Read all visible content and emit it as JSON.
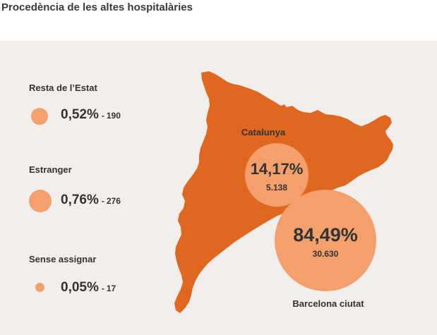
{
  "title": "Procedència de les altes hospitalàries",
  "colors": {
    "region": "#e0671f",
    "bubble": "#f3a06c",
    "panel": "#f1eeec"
  },
  "legend": [
    {
      "heading": "Resta de l’Estat",
      "percent": "0,52%",
      "separator": "-",
      "count": "190"
    },
    {
      "heading": "Estranger",
      "percent": "0,76%",
      "separator": "-",
      "count": "276"
    },
    {
      "heading": "Sense assignar",
      "percent": "0,05%",
      "separator": "-",
      "count": "17"
    }
  ],
  "map": {
    "catalunya": {
      "label": "Catalunya",
      "percent": "14,17%",
      "count": "5.138"
    },
    "barcelona": {
      "label": "Barcelona ciutat",
      "percent": "84,49%",
      "count": "30.630"
    }
  }
}
